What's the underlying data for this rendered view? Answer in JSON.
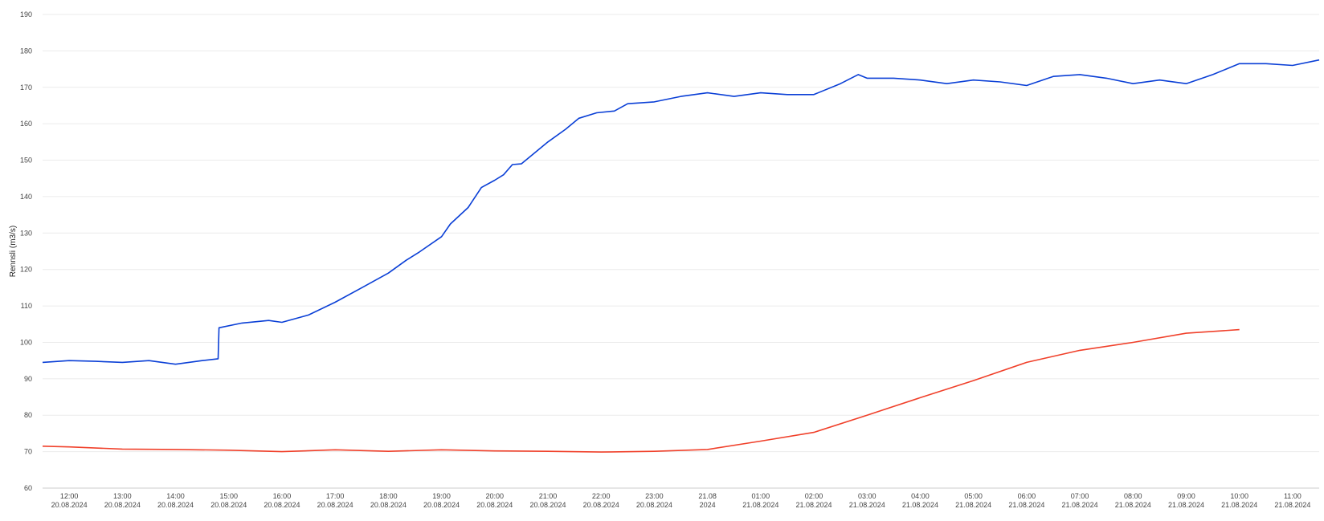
{
  "chart_data": {
    "type": "line",
    "ylabel": "Rennsli (m3/s)",
    "ylim": [
      60,
      190
    ],
    "yticks": [
      60,
      70,
      80,
      90,
      100,
      110,
      120,
      130,
      140,
      150,
      160,
      170,
      180,
      190
    ],
    "grid": true,
    "xlim": [
      "2024-08-20T11:30",
      "2024-08-21T11:30"
    ],
    "xticks": [
      {
        "t": "2024-08-20T12:00",
        "line1": "12:00",
        "line2": "20.08.2024"
      },
      {
        "t": "2024-08-20T13:00",
        "line1": "13:00",
        "line2": "20.08.2024"
      },
      {
        "t": "2024-08-20T14:00",
        "line1": "14:00",
        "line2": "20.08.2024"
      },
      {
        "t": "2024-08-20T15:00",
        "line1": "15:00",
        "line2": "20.08.2024"
      },
      {
        "t": "2024-08-20T16:00",
        "line1": "16:00",
        "line2": "20.08.2024"
      },
      {
        "t": "2024-08-20T17:00",
        "line1": "17:00",
        "line2": "20.08.2024"
      },
      {
        "t": "2024-08-20T18:00",
        "line1": "18:00",
        "line2": "20.08.2024"
      },
      {
        "t": "2024-08-20T19:00",
        "line1": "19:00",
        "line2": "20.08.2024"
      },
      {
        "t": "2024-08-20T20:00",
        "line1": "20:00",
        "line2": "20.08.2024"
      },
      {
        "t": "2024-08-20T21:00",
        "line1": "21:00",
        "line2": "20.08.2024"
      },
      {
        "t": "2024-08-20T22:00",
        "line1": "22:00",
        "line2": "20.08.2024"
      },
      {
        "t": "2024-08-20T23:00",
        "line1": "23:00",
        "line2": "20.08.2024"
      },
      {
        "t": "2024-08-21T00:00",
        "line1": "21.08",
        "line2": "2024"
      },
      {
        "t": "2024-08-21T01:00",
        "line1": "01:00",
        "line2": "21.08.2024"
      },
      {
        "t": "2024-08-21T02:00",
        "line1": "02:00",
        "line2": "21.08.2024"
      },
      {
        "t": "2024-08-21T03:00",
        "line1": "03:00",
        "line2": "21.08.2024"
      },
      {
        "t": "2024-08-21T04:00",
        "line1": "04:00",
        "line2": "21.08.2024"
      },
      {
        "t": "2024-08-21T05:00",
        "line1": "05:00",
        "line2": "21.08.2024"
      },
      {
        "t": "2024-08-21T06:00",
        "line1": "06:00",
        "line2": "21.08.2024"
      },
      {
        "t": "2024-08-21T07:00",
        "line1": "07:00",
        "line2": "21.08.2024"
      },
      {
        "t": "2024-08-21T08:00",
        "line1": "08:00",
        "line2": "21.08.2024"
      },
      {
        "t": "2024-08-21T09:00",
        "line1": "09:00",
        "line2": "21.08.2024"
      },
      {
        "t": "2024-08-21T10:00",
        "line1": "10:00",
        "line2": "21.08.2024"
      },
      {
        "t": "2024-08-21T11:00",
        "line1": "11:00",
        "line2": "21.08.2024"
      }
    ],
    "series": [
      {
        "color": "#0a3fd6",
        "points": [
          [
            "2024-08-20T11:30",
            94.5
          ],
          [
            "2024-08-20T12:00",
            95.0
          ],
          [
            "2024-08-20T12:30",
            94.8
          ],
          [
            "2024-08-20T13:00",
            94.5
          ],
          [
            "2024-08-20T13:30",
            95.0
          ],
          [
            "2024-08-20T14:00",
            94.0
          ],
          [
            "2024-08-20T14:30",
            95.0
          ],
          [
            "2024-08-20T14:48",
            95.5
          ],
          [
            "2024-08-20T14:49",
            104.0
          ],
          [
            "2024-08-20T15:15",
            105.3
          ],
          [
            "2024-08-20T15:45",
            106.0
          ],
          [
            "2024-08-20T16:00",
            105.5
          ],
          [
            "2024-08-20T16:30",
            107.5
          ],
          [
            "2024-08-20T17:00",
            111.0
          ],
          [
            "2024-08-20T17:30",
            115.0
          ],
          [
            "2024-08-20T18:00",
            119.0
          ],
          [
            "2024-08-20T18:20",
            122.5
          ],
          [
            "2024-08-20T18:35",
            124.8
          ],
          [
            "2024-08-20T19:00",
            129.0
          ],
          [
            "2024-08-20T19:10",
            132.5
          ],
          [
            "2024-08-20T19:30",
            137.0
          ],
          [
            "2024-08-20T19:45",
            142.5
          ],
          [
            "2024-08-20T20:00",
            144.5
          ],
          [
            "2024-08-20T20:10",
            146.0
          ],
          [
            "2024-08-20T20:20",
            148.8
          ],
          [
            "2024-08-20T20:30",
            149.0
          ],
          [
            "2024-08-20T20:45",
            152.0
          ],
          [
            "2024-08-20T21:00",
            155.0
          ],
          [
            "2024-08-20T21:20",
            158.5
          ],
          [
            "2024-08-20T21:35",
            161.5
          ],
          [
            "2024-08-20T21:55",
            163.0
          ],
          [
            "2024-08-20T22:15",
            163.5
          ],
          [
            "2024-08-20T22:30",
            165.5
          ],
          [
            "2024-08-20T23:00",
            166.0
          ],
          [
            "2024-08-20T23:30",
            167.5
          ],
          [
            "2024-08-20T23:45",
            168.0
          ],
          [
            "2024-08-21T00:00",
            168.5
          ],
          [
            "2024-08-21T00:30",
            167.5
          ],
          [
            "2024-08-21T01:00",
            168.5
          ],
          [
            "2024-08-21T01:30",
            168.0
          ],
          [
            "2024-08-21T02:00",
            168.0
          ],
          [
            "2024-08-21T02:30",
            171.0
          ],
          [
            "2024-08-21T02:50",
            173.5
          ],
          [
            "2024-08-21T03:00",
            172.5
          ],
          [
            "2024-08-21T03:30",
            172.5
          ],
          [
            "2024-08-21T04:00",
            172.0
          ],
          [
            "2024-08-21T04:30",
            171.0
          ],
          [
            "2024-08-21T05:00",
            172.0
          ],
          [
            "2024-08-21T05:30",
            171.5
          ],
          [
            "2024-08-21T06:00",
            170.5
          ],
          [
            "2024-08-21T06:30",
            173.0
          ],
          [
            "2024-08-21T07:00",
            173.5
          ],
          [
            "2024-08-21T07:30",
            172.5
          ],
          [
            "2024-08-21T08:00",
            171.0
          ],
          [
            "2024-08-21T08:30",
            172.0
          ],
          [
            "2024-08-21T09:00",
            171.0
          ],
          [
            "2024-08-21T09:30",
            173.5
          ],
          [
            "2024-08-21T10:00",
            176.5
          ],
          [
            "2024-08-21T10:30",
            176.5
          ],
          [
            "2024-08-21T11:00",
            176.0
          ],
          [
            "2024-08-21T11:30",
            177.5
          ]
        ]
      },
      {
        "color": "#f0402a",
        "points": [
          [
            "2024-08-20T11:30",
            71.5
          ],
          [
            "2024-08-20T12:00",
            71.3
          ],
          [
            "2024-08-20T13:00",
            70.7
          ],
          [
            "2024-08-20T14:00",
            70.6
          ],
          [
            "2024-08-20T15:00",
            70.4
          ],
          [
            "2024-08-20T16:00",
            70.0
          ],
          [
            "2024-08-20T17:00",
            70.5
          ],
          [
            "2024-08-20T18:00",
            70.1
          ],
          [
            "2024-08-20T19:00",
            70.5
          ],
          [
            "2024-08-20T20:00",
            70.2
          ],
          [
            "2024-08-20T21:00",
            70.1
          ],
          [
            "2024-08-20T22:00",
            69.9
          ],
          [
            "2024-08-20T23:00",
            70.1
          ],
          [
            "2024-08-21T00:00",
            70.6
          ],
          [
            "2024-08-21T01:00",
            72.9
          ],
          [
            "2024-08-21T02:00",
            75.3
          ],
          [
            "2024-08-21T03:00",
            80.0
          ],
          [
            "2024-08-21T04:00",
            84.8
          ],
          [
            "2024-08-21T05:00",
            89.5
          ],
          [
            "2024-08-21T06:00",
            94.5
          ],
          [
            "2024-08-21T07:00",
            97.8
          ],
          [
            "2024-08-21T08:00",
            100.0
          ],
          [
            "2024-08-21T09:00",
            102.5
          ],
          [
            "2024-08-21T10:00",
            103.5
          ]
        ]
      }
    ]
  }
}
